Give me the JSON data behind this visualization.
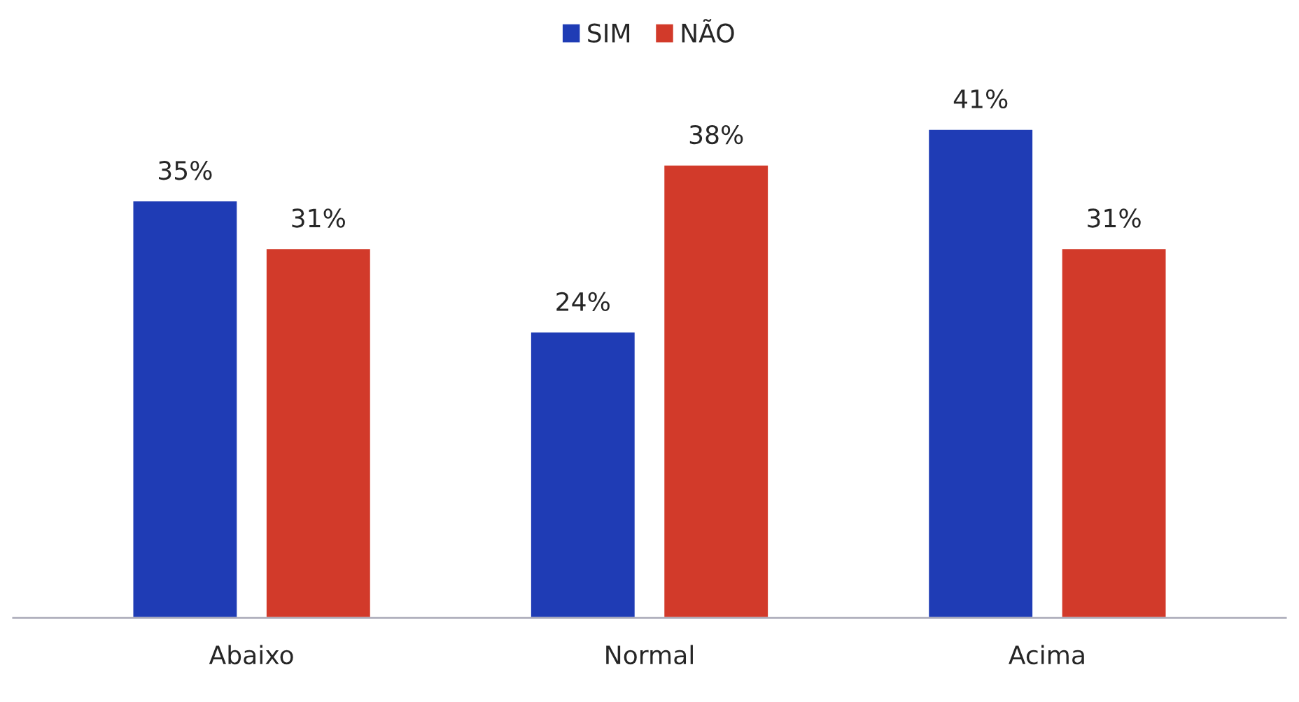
{
  "chart_data": {
    "type": "bar",
    "categories": [
      "Abaixo",
      "Normal",
      "Acima"
    ],
    "series": [
      {
        "name": "SIM",
        "color": "#1f3cb5",
        "values": [
          35,
          24,
          41
        ],
        "value_labels": [
          "35%",
          "24%",
          "41%"
        ]
      },
      {
        "name": "NÃO",
        "color": "#d23a2a",
        "values": [
          31,
          38,
          31
        ],
        "value_labels": [
          "31%",
          "38%",
          "31%"
        ]
      }
    ],
    "legend": "top"
  }
}
